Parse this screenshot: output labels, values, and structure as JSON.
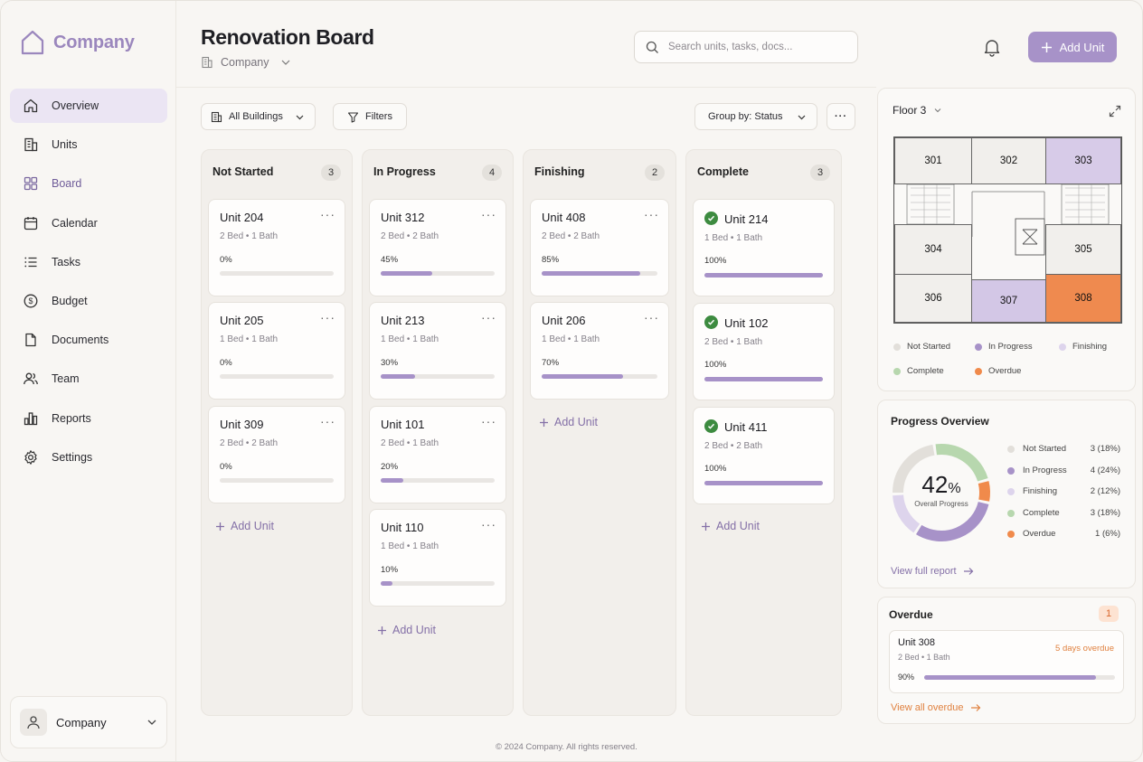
{
  "brand": {
    "name": "Company"
  },
  "sidebar": {
    "items": [
      {
        "label": "Overview",
        "icon": "home-icon",
        "active": true
      },
      {
        "label": "Units",
        "icon": "building-icon"
      },
      {
        "label": "Board",
        "icon": "grid-icon"
      },
      {
        "label": "Calendar",
        "icon": "calendar-icon"
      },
      {
        "label": "Tasks",
        "icon": "list-icon"
      },
      {
        "label": "Budget",
        "icon": "dollar-icon"
      },
      {
        "label": "Documents",
        "icon": "document-icon"
      },
      {
        "label": "Team",
        "icon": "users-icon"
      },
      {
        "label": "Reports",
        "icon": "bar-chart-icon"
      },
      {
        "label": "Settings",
        "icon": "gear-icon"
      }
    ],
    "user": {
      "name": "Company"
    }
  },
  "header": {
    "title": "Renovation Board",
    "breadcrumb": "Company",
    "search_placeholder": "Search units, tasks, docs...",
    "add_unit_label": "Add Unit"
  },
  "toolbar": {
    "buildings": "All Buildings",
    "filters": "Filters",
    "group_by": "Group by: Status",
    "more": "···"
  },
  "board": {
    "columns": [
      {
        "title": "Not Started",
        "count": "3",
        "cards": [
          {
            "name": "Unit 204",
            "meta": "2 Bed  •  1 Bath",
            "pct": "0%",
            "progress": 0
          },
          {
            "name": "Unit 205",
            "meta": "1 Bed  •  1 Bath",
            "pct": "0%",
            "progress": 0
          },
          {
            "name": "Unit 309",
            "meta": "2 Bed  •  2 Bath",
            "pct": "0%",
            "progress": 0
          }
        ]
      },
      {
        "title": "In Progress",
        "count": "4",
        "cards": [
          {
            "name": "Unit 312",
            "meta": "2 Bed  •  2 Bath",
            "pct": "45%",
            "progress": 0.45
          },
          {
            "name": "Unit 213",
            "meta": "1 Bed  •  1 Bath",
            "pct": "30%",
            "progress": 0.3
          },
          {
            "name": "Unit 101",
            "meta": "2 Bed  •  1 Bath",
            "pct": "20%",
            "progress": 0.2
          },
          {
            "name": "Unit 110",
            "meta": "1 Bed  •  1 Bath",
            "pct": "10%",
            "progress": 0.1
          }
        ]
      },
      {
        "title": "Finishing",
        "count": "2",
        "cards": [
          {
            "name": "Unit 408",
            "meta": "2 Bed  •  2 Bath",
            "pct": "85%",
            "progress": 0.85
          },
          {
            "name": "Unit 206",
            "meta": "1 Bed  •  1 Bath",
            "pct": "70%",
            "progress": 0.7
          }
        ]
      },
      {
        "title": "Complete",
        "count": "3",
        "cards": [
          {
            "name": "Unit 214",
            "meta": "1 Bed  •  1 Bath",
            "pct": "100%",
            "progress": 1.0
          },
          {
            "name": "Unit 102",
            "meta": "2 Bed  •  1 Bath",
            "pct": "100%",
            "progress": 1.0
          },
          {
            "name": "Unit 411",
            "meta": "2 Bed  •  2 Bath",
            "pct": "100%",
            "progress": 1.0
          }
        ]
      }
    ],
    "add_unit_label": "Add Unit"
  },
  "floor_plan": {
    "floor": "Floor 3",
    "rooms": {
      "301": "301",
      "302": "302",
      "303": "303",
      "304": "304",
      "305": "305",
      "306": "306",
      "307": "307",
      "308": "308"
    },
    "legend": [
      "Not Started",
      "In Progress",
      "Finishing",
      "Complete",
      "Overdue"
    ]
  },
  "progress_overview": {
    "title": "Progress Overview",
    "overall": "42",
    "overall_unit": "%",
    "overall_label": "Overall Progress",
    "rows": [
      {
        "name": "Not Started",
        "value": "3 (18%)",
        "color": "#e2dfda"
      },
      {
        "name": "In Progress",
        "value": "4 (24%)",
        "color": "#a792c8"
      },
      {
        "name": "Finishing",
        "value": "2 (12%)",
        "color": "#ddd4ec"
      },
      {
        "name": "Complete",
        "value": "3 (18%)",
        "color": "#b7d7ae"
      },
      {
        "name": "Overdue",
        "value": "1 (6%)",
        "color": "#f08a4b"
      }
    ],
    "link": "View full report"
  },
  "overdue": {
    "title": "Overdue",
    "count": "1",
    "unit": "Unit 308",
    "meta": "2 Bed  •  1 Bath",
    "status": "5 days overdue",
    "pct": "90%",
    "progress": 0.9,
    "link": "View all overdue"
  },
  "colors": {
    "accent": "#a792c8",
    "overdue": "#f08a4b",
    "complete": "#3d8b40"
  },
  "footer": "© 2024 Company. All rights reserved."
}
